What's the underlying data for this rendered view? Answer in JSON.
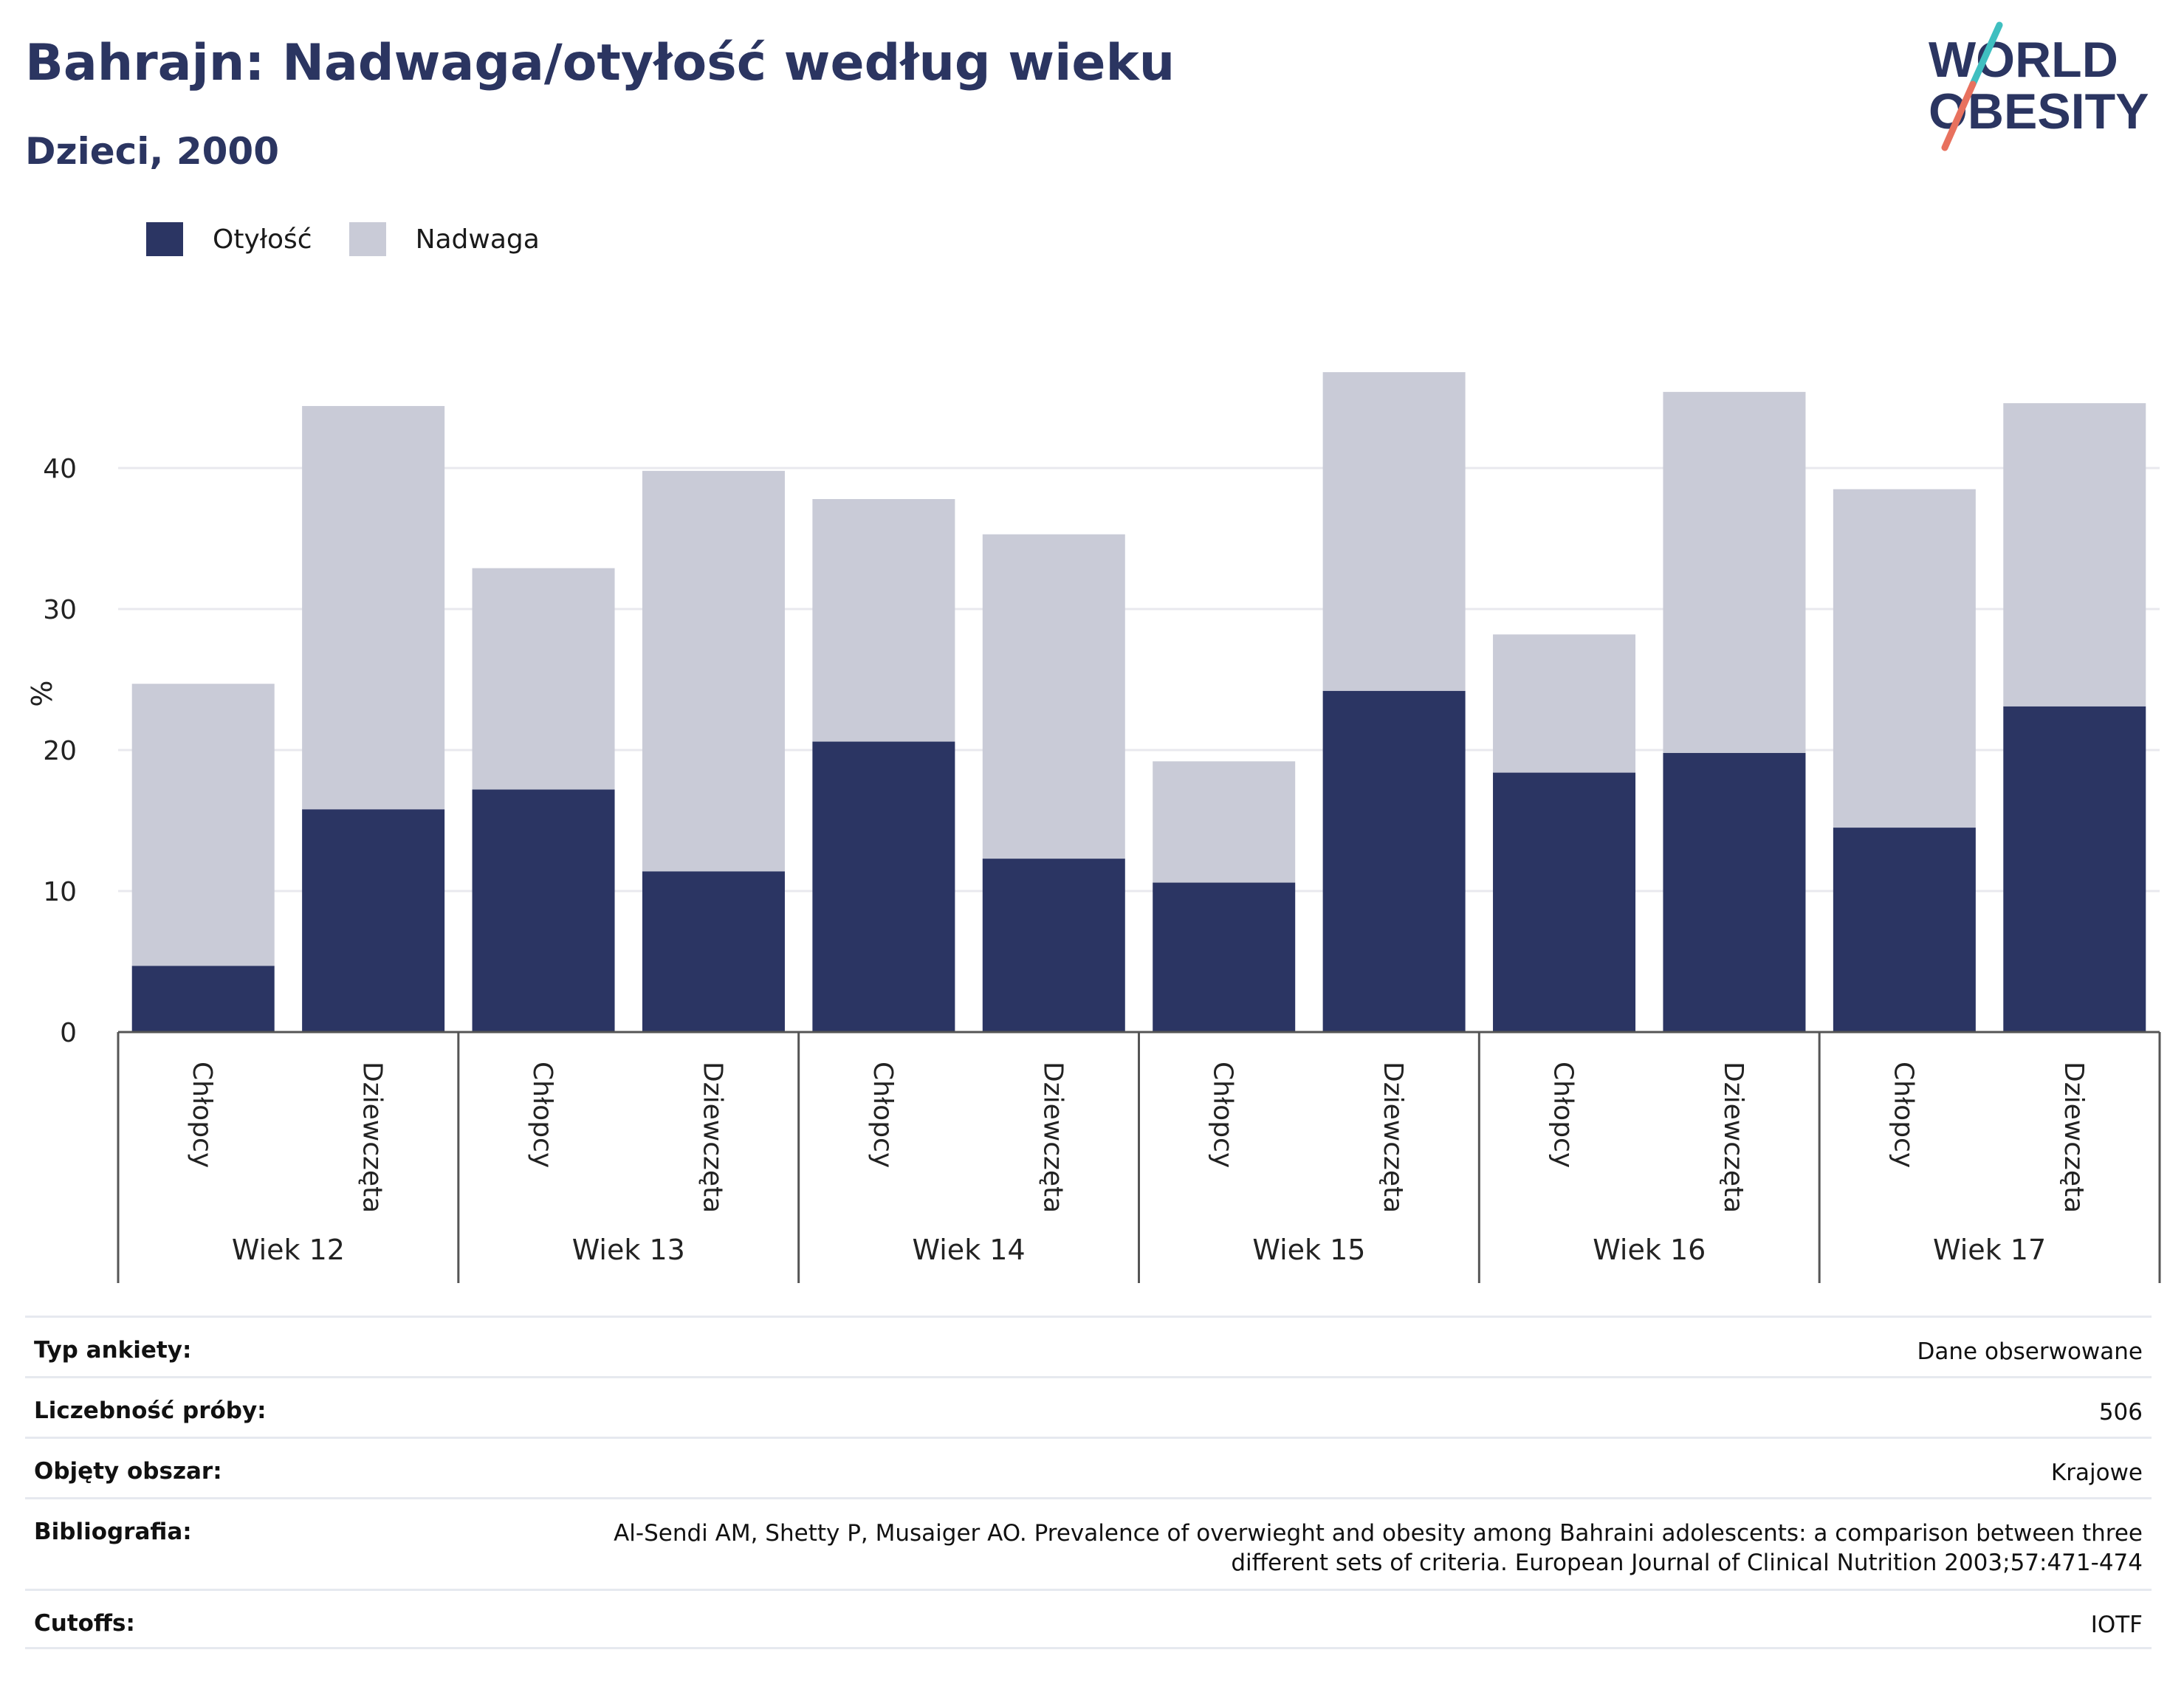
{
  "header": {
    "title": "Bahrajn: Nadwaga/otyłość według wieku",
    "subtitle": "Dzieci, 2000"
  },
  "logo": {
    "line1": "WORLD",
    "line2": "OBESITY"
  },
  "legend": [
    {
      "label": "Otyłość",
      "color": "#2b3563"
    },
    {
      "label": "Nadwaga",
      "color": "#c9cbd7"
    }
  ],
  "chart_data": {
    "type": "bar",
    "stacked": true,
    "ylabel": "%",
    "ylim": [
      0,
      50
    ],
    "yticks": [
      0,
      10,
      20,
      30,
      40
    ],
    "grid": true,
    "legend_position": "top-left",
    "groups": [
      "Wiek 12",
      "Wiek 13",
      "Wiek 14",
      "Wiek 15",
      "Wiek 16",
      "Wiek 17"
    ],
    "categories": [
      "Chłopcy",
      "Dziewczęta"
    ],
    "series": [
      {
        "name": "Otyłość",
        "color": "#2b3563",
        "values": [
          [
            4.7,
            15.8
          ],
          [
            17.2,
            11.4
          ],
          [
            20.6,
            12.3
          ],
          [
            10.6,
            24.2
          ],
          [
            18.4,
            19.8
          ],
          [
            14.5,
            23.1
          ]
        ]
      },
      {
        "name": "Nadwaga",
        "color": "#c9cbd7",
        "values": [
          [
            20.0,
            28.6
          ],
          [
            15.7,
            28.4
          ],
          [
            17.2,
            23.0
          ],
          [
            8.6,
            22.6
          ],
          [
            9.8,
            25.6
          ],
          [
            24.0,
            21.5
          ]
        ]
      }
    ]
  },
  "meta": [
    {
      "label": "Typ ankiety:",
      "value": "Dane obserwowane"
    },
    {
      "label": "Liczebność próby:",
      "value": "506"
    },
    {
      "label": "Objęty obszar:",
      "value": "Krajowe"
    },
    {
      "label": "Bibliografia:",
      "value": "Al-Sendi AM, Shetty P, Musaiger AO. Prevalence of overwieght and obesity among Bahraini adolescents: a comparison between three different sets of criteria. European Journal of Clinical Nutrition 2003;57:471-474"
    },
    {
      "label": "Cutoffs:",
      "value": "IOTF"
    }
  ]
}
